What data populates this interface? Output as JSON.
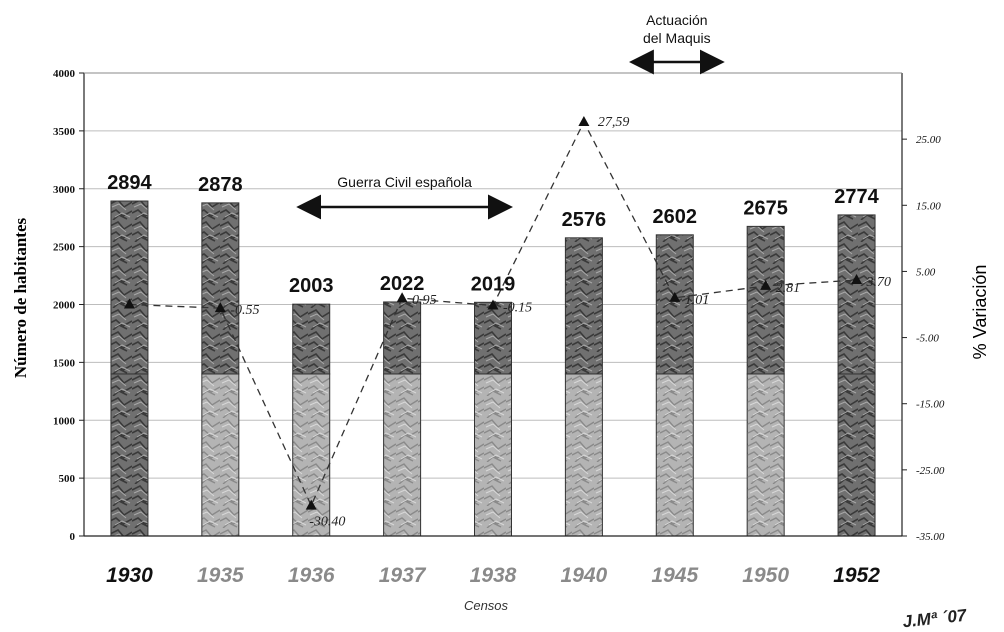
{
  "chart_data": {
    "type": "bar",
    "categories": [
      "1930",
      "1935",
      "1936",
      "1937",
      "1938",
      "1940",
      "1945",
      "1950",
      "1952"
    ],
    "category_highlight": [
      true,
      false,
      false,
      false,
      false,
      false,
      false,
      false,
      true
    ],
    "series": [
      {
        "values": [
          2894,
          2878,
          2003,
          2022,
          2019,
          2576,
          2602,
          2675,
          2774
        ]
      }
    ],
    "secondary_series": {
      "type": "line",
      "values": [
        0.0,
        -0.55,
        -30.4,
        0.95,
        -0.15,
        27.59,
        1.01,
        2.81,
        3.7
      ],
      "labels": [
        "",
        "-0.55",
        "-30.40",
        "0.95",
        "-0.15",
        "27,59",
        "1.01",
        "2.81",
        "3.70"
      ]
    },
    "ylabel": "Número de habitantes",
    "y2label": "% Variación",
    "xlabel": "Censos",
    "ylim": [
      0,
      4000
    ],
    "y_ticks": [
      "0",
      "500",
      "1000",
      "1500",
      "2000",
      "2500",
      "3000",
      "3500",
      "4000"
    ],
    "y2lim": [
      -35,
      35
    ],
    "y2_ticks": [
      "-35.00",
      "-25.00",
      "-15.00",
      "-5.00",
      "5.00",
      "15.00",
      "25.00"
    ],
    "grid": true,
    "annotations": [
      {
        "text": "Guerra Civil española",
        "from": "1936",
        "to": "1938"
      },
      {
        "text_lines": [
          "Actuación",
          "del Maquis"
        ],
        "from": "1940",
        "to": "1945"
      }
    ],
    "signature": "J.Mª ´07",
    "colors": {
      "bar_dark": "#6b6b6b",
      "bar_light": "#b0b0b0",
      "line": "#333333"
    }
  }
}
